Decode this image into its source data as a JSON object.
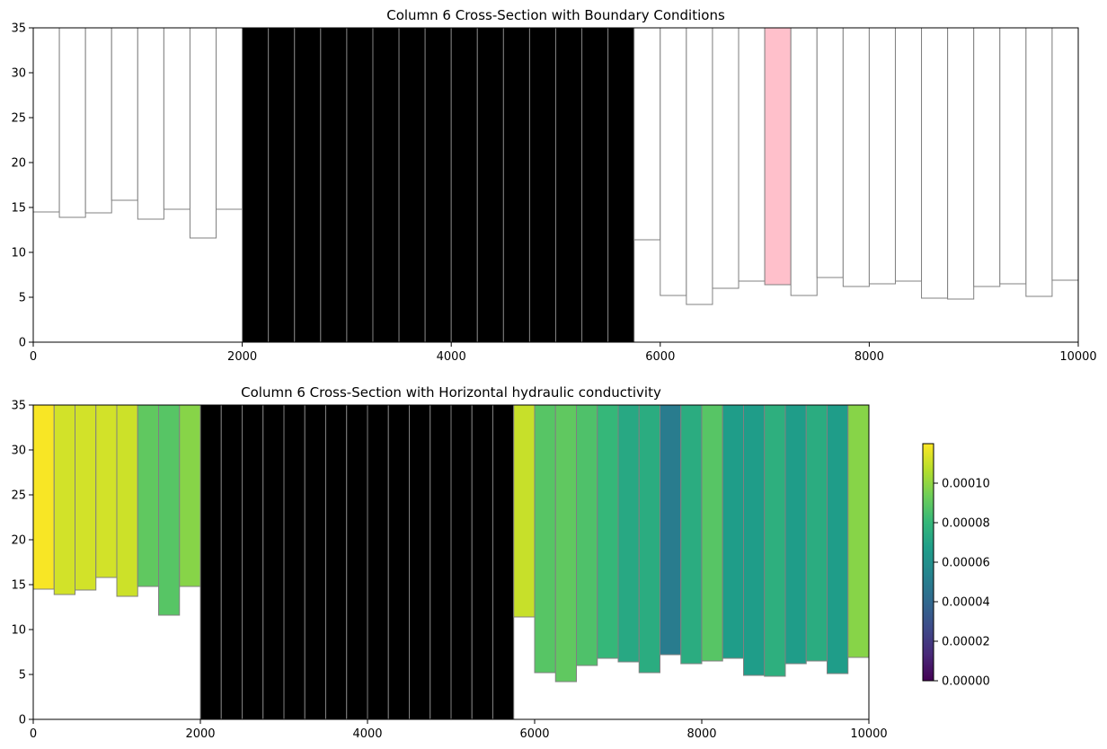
{
  "chart_data": [
    {
      "type": "bar",
      "title": "Column 6 Cross-Section with Boundary Conditions",
      "xlim": [
        0,
        10000
      ],
      "ylim": [
        0,
        35
      ],
      "xticks": [
        "0",
        "2000",
        "4000",
        "6000",
        "8000",
        "10000"
      ],
      "yticks": [
        "0",
        "5",
        "10",
        "15",
        "20",
        "25",
        "30",
        "35"
      ],
      "cell_width": 250,
      "top_elevation": 35,
      "cell_bottoms": [
        14.5,
        13.9,
        14.4,
        15.8,
        13.7,
        14.8,
        11.6,
        14.8,
        0,
        0,
        0,
        0,
        0,
        0,
        0,
        0,
        0,
        0,
        0,
        0,
        0,
        0,
        0,
        11.4,
        5.2,
        4.2,
        6.0,
        6.8,
        6.4,
        5.2,
        7.2,
        6.2,
        6.5,
        6.8,
        4.9,
        4.8,
        6.2,
        6.5,
        5.1,
        6.9
      ],
      "cell_status": [
        "active",
        "active",
        "active",
        "active",
        "active",
        "active",
        "active",
        "active",
        "inactive",
        "inactive",
        "inactive",
        "inactive",
        "inactive",
        "inactive",
        "inactive",
        "inactive",
        "inactive",
        "inactive",
        "inactive",
        "inactive",
        "inactive",
        "inactive",
        "inactive",
        "active",
        "active",
        "active",
        "active",
        "active",
        "boundary",
        "active",
        "active",
        "active",
        "active",
        "active",
        "active",
        "active",
        "active",
        "active",
        "active",
        "active"
      ],
      "colors": {
        "active": "#ffffff",
        "inactive": "#000000",
        "boundary": "#ffc0cb",
        "edge": "#808080"
      }
    },
    {
      "type": "heatmap",
      "title": "Column 6 Cross-Section with Horizontal hydraulic conductivity",
      "xlim": [
        0,
        10000
      ],
      "ylim": [
        0,
        35
      ],
      "xticks": [
        "0",
        "2000",
        "4000",
        "6000",
        "8000",
        "10000"
      ],
      "yticks": [
        "0",
        "5",
        "10",
        "15",
        "20",
        "25",
        "30",
        "35"
      ],
      "cell_width": 250,
      "top_elevation": 35,
      "cell_bottoms": [
        14.5,
        13.9,
        14.4,
        15.8,
        13.7,
        14.8,
        11.6,
        14.8,
        0,
        0,
        0,
        0,
        0,
        0,
        0,
        0,
        0,
        0,
        0,
        0,
        0,
        0,
        0,
        11.4,
        5.2,
        4.2,
        6.0,
        6.8,
        6.4,
        5.2,
        7.2,
        6.2,
        6.5,
        6.8,
        4.9,
        4.8,
        6.2,
        6.5,
        5.1,
        6.9
      ],
      "hk_values": [
        0.000119,
        0.000112,
        0.000112,
        0.000112,
        0.000111,
        9e-05,
        8.8e-05,
        9.8e-05,
        null,
        null,
        null,
        null,
        null,
        null,
        null,
        null,
        null,
        null,
        null,
        null,
        null,
        null,
        null,
        0.00011,
        8.8e-05,
        9e-05,
        8.6e-05,
        8e-05,
        7.2e-05,
        7.4e-05,
        5e-05,
        7.4e-05,
        8.8e-05,
        6.6e-05,
        6.6e-05,
        7.6e-05,
        6.6e-05,
        7.4e-05,
        6.6e-05,
        9.8e-05
      ],
      "inactive_color": "#000000",
      "edge_color": "#808080",
      "colorbar": {
        "vmin": 0,
        "vmax": 0.00012,
        "ticks": [
          {
            "value": 0,
            "label": "0.00000"
          },
          {
            "value": 2e-05,
            "label": "0.00002"
          },
          {
            "value": 4e-05,
            "label": "0.00004"
          },
          {
            "value": 6e-05,
            "label": "0.00006"
          },
          {
            "value": 8e-05,
            "label": "0.00008"
          },
          {
            "value": 0.0001,
            "label": "0.00010"
          }
        ],
        "colormap": "viridis"
      }
    }
  ]
}
